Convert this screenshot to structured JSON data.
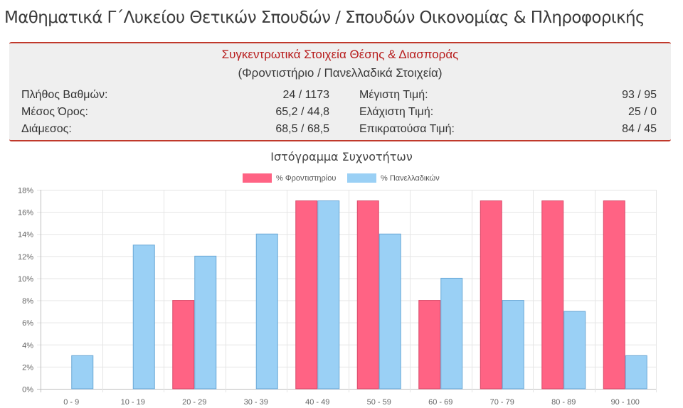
{
  "page": {
    "title": "Μαθηματικά Γ΄Λυκείου Θετικών Σπουδών / Σπουδών Οικονομίας & Πληροφορικής"
  },
  "stats": {
    "title": "Συγκεντρωτικά Στοιχεία Θέσης & Διασποράς",
    "subtitle": "(Φροντιστήριο / Πανελλαδικά Στοιχεία)",
    "left": [
      {
        "label": "Πλήθος Βαθμών:",
        "value": "24 / 1173"
      },
      {
        "label": "Μέσος Όρος:",
        "value": "65,2 / 44,8"
      },
      {
        "label": "Διάμεσος:",
        "value": "68,5 / 68,5"
      }
    ],
    "right": [
      {
        "label": "Μέγιστη Τιμή:",
        "value": "93 / 95"
      },
      {
        "label": "Ελάχιστη Τιμή:",
        "value": "25 / 0"
      },
      {
        "label": "Επικρατούσα Τιμή:",
        "value": "84 / 45"
      }
    ],
    "accent_color": "#c0392b"
  },
  "chart_data": {
    "type": "bar",
    "title": "Ιστόγραμμα Συχνοτήτων",
    "categories": [
      "0 - 9",
      "10 - 19",
      "20 - 29",
      "30 - 39",
      "40 - 49",
      "50 - 59",
      "60 - 69",
      "70 - 79",
      "80 - 89",
      "90 - 100"
    ],
    "series": [
      {
        "name": "% Φροντιστηρίου",
        "color": "#ff6384",
        "border": "#d94a6a",
        "values": [
          0,
          0,
          8,
          0,
          17,
          17,
          8,
          17,
          17,
          17
        ]
      },
      {
        "name": "% Πανελλαδικών",
        "color": "#9ad0f5",
        "border": "#6aa8d6",
        "values": [
          3,
          13,
          12,
          14,
          17,
          14,
          10,
          8,
          7,
          3
        ]
      }
    ],
    "ylim": [
      0,
      18
    ],
    "yticks": [
      "0%",
      "2%",
      "4%",
      "6%",
      "8%",
      "10%",
      "12%",
      "14%",
      "16%",
      "18%"
    ],
    "ytick_values": [
      0,
      2,
      4,
      6,
      8,
      10,
      12,
      14,
      16,
      18
    ],
    "legend_position": "top",
    "grid": true
  }
}
